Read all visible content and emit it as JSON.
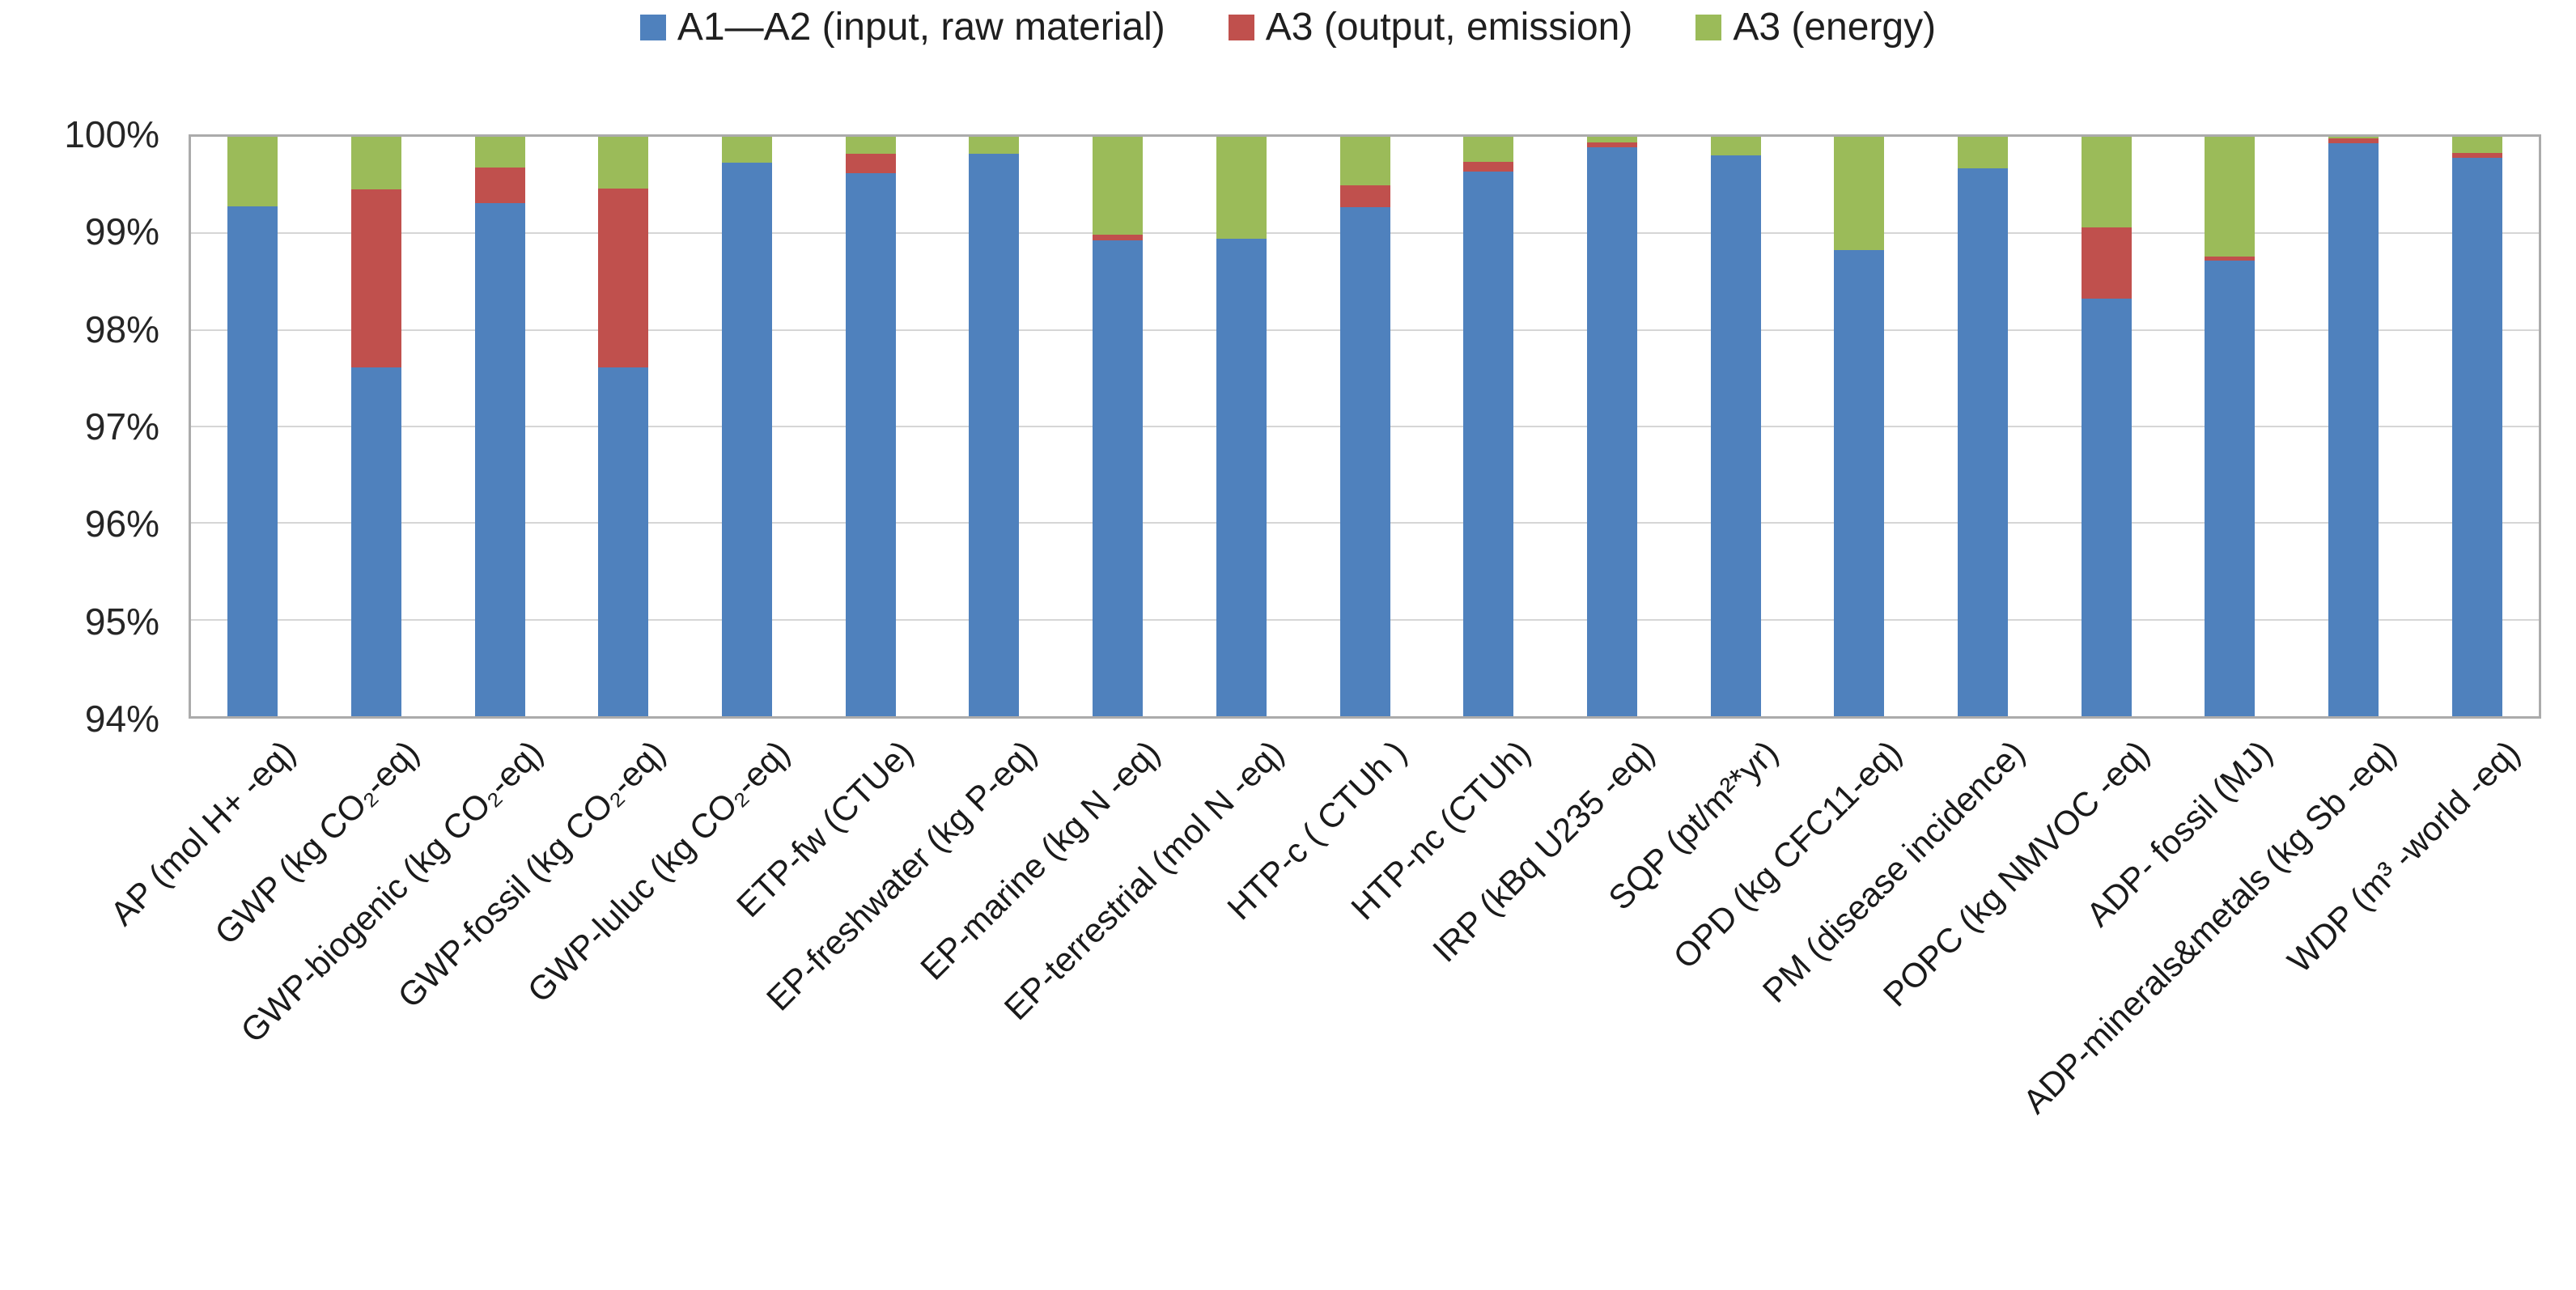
{
  "legend": {
    "items": [
      {
        "label": "A1—A2 (input, raw material)",
        "color": "#4F81BD"
      },
      {
        "label": "A3 (output, emission)",
        "color": "#C0504D"
      },
      {
        "label": "A3 (energy)",
        "color": "#9BBB59"
      }
    ]
  },
  "chart_data": {
    "type": "bar",
    "stacked": true,
    "unit": "percent",
    "title": "",
    "xlabel": "",
    "ylabel": "",
    "ylim": [
      94,
      100
    ],
    "grid": true,
    "legend_position": "top",
    "y_ticks": [
      "100%",
      "99%",
      "98%",
      "97%",
      "96%",
      "95%",
      "94%"
    ],
    "categories": [
      "AP (mol H+ -eq)",
      "GWP (kg CO₂-eq)",
      "GWP-biogenic (kg CO₂-eq)",
      "GWP-fossil (kg CO₂-eq)",
      "GWP-luluc (kg CO₂-eq)",
      "ETP-fw (CTUe)",
      "EP-freshwater (kg P-eq)",
      "EP-marine (kg N -eq)",
      "EP-terrestrial (mol N -eq)",
      "HTP-c ( CTUh )",
      "HTP-nc (CTUh)",
      "IRP (kBq U235 -eq)",
      "SQP (pt/m²*yr)",
      "OPD (kg CFC11-eq)",
      "PM (disease incidence)",
      "POPC (kg NMVOC -eq)",
      "ADP- fossil (MJ)",
      "ADP-minerals&metals (kg Sb -eq)",
      "WDP (m³ -world -eq)"
    ],
    "series": [
      {
        "name": "A1—A2 (input, raw material)",
        "color": "#4F81BD",
        "values": [
          99.28,
          97.61,
          99.31,
          97.61,
          99.73,
          99.62,
          99.82,
          98.93,
          98.94,
          99.27,
          99.64,
          99.89,
          99.81,
          98.83,
          99.67,
          98.32,
          98.72,
          99.93,
          99.78
        ]
      },
      {
        "name": "A3 (output, emission)",
        "color": "#C0504D",
        "values": [
          0.0,
          1.84,
          0.37,
          1.85,
          0.0,
          0.2,
          0.0,
          0.06,
          0.0,
          0.23,
          0.1,
          0.05,
          0.0,
          0.0,
          0.0,
          0.74,
          0.04,
          0.05,
          0.05
        ]
      },
      {
        "name": "A3 (energy)",
        "color": "#9BBB59",
        "values": [
          0.72,
          0.55,
          0.32,
          0.54,
          0.27,
          0.18,
          0.18,
          1.01,
          1.06,
          0.5,
          0.26,
          0.06,
          0.19,
          1.17,
          0.33,
          0.94,
          1.24,
          0.02,
          0.17
        ]
      }
    ]
  },
  "colors": {
    "background": "#FFFFFF",
    "plot_border": "#ABABAB",
    "gridline": "#D6D6D6",
    "text": "#1F1F1F"
  }
}
